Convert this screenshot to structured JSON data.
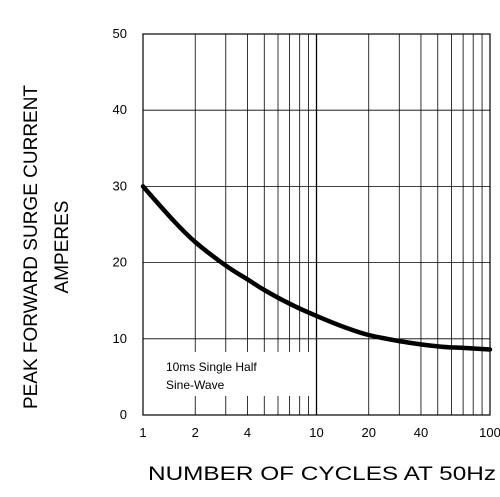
{
  "chart_data": {
    "type": "line",
    "xscale": "log",
    "xlim": [
      1,
      100
    ],
    "ylim": [
      0,
      50
    ],
    "xlabel": "NUMBER OF CYCLES AT 50Hz",
    "ylabel_line1": "PEAK FORWARD SURGE CURRENT",
    "ylabel_line2": "AMPERES",
    "x_ticks": [
      1,
      2,
      4,
      10,
      20,
      40,
      100
    ],
    "x_tick_labels": [
      "1",
      "2",
      "4",
      "10",
      "20",
      "40",
      "100"
    ],
    "y_ticks": [
      0,
      10,
      20,
      30,
      40,
      50
    ],
    "y_tick_labels": [
      "0",
      "10",
      "20",
      "30",
      "40",
      "50"
    ],
    "annotation_line1": "10ms Single Half",
    "annotation_line2": "Sine-Wave",
    "grid": true,
    "series": [
      {
        "x": [
          1,
          1.5,
          2,
          3,
          4,
          5,
          7,
          10,
          15,
          20,
          30,
          50,
          70,
          100
        ],
        "y": [
          30,
          25.5,
          22.7,
          19.6,
          17.8,
          16.4,
          14.6,
          13.0,
          11.4,
          10.5,
          9.7,
          9.0,
          8.8,
          8.6
        ]
      }
    ]
  }
}
